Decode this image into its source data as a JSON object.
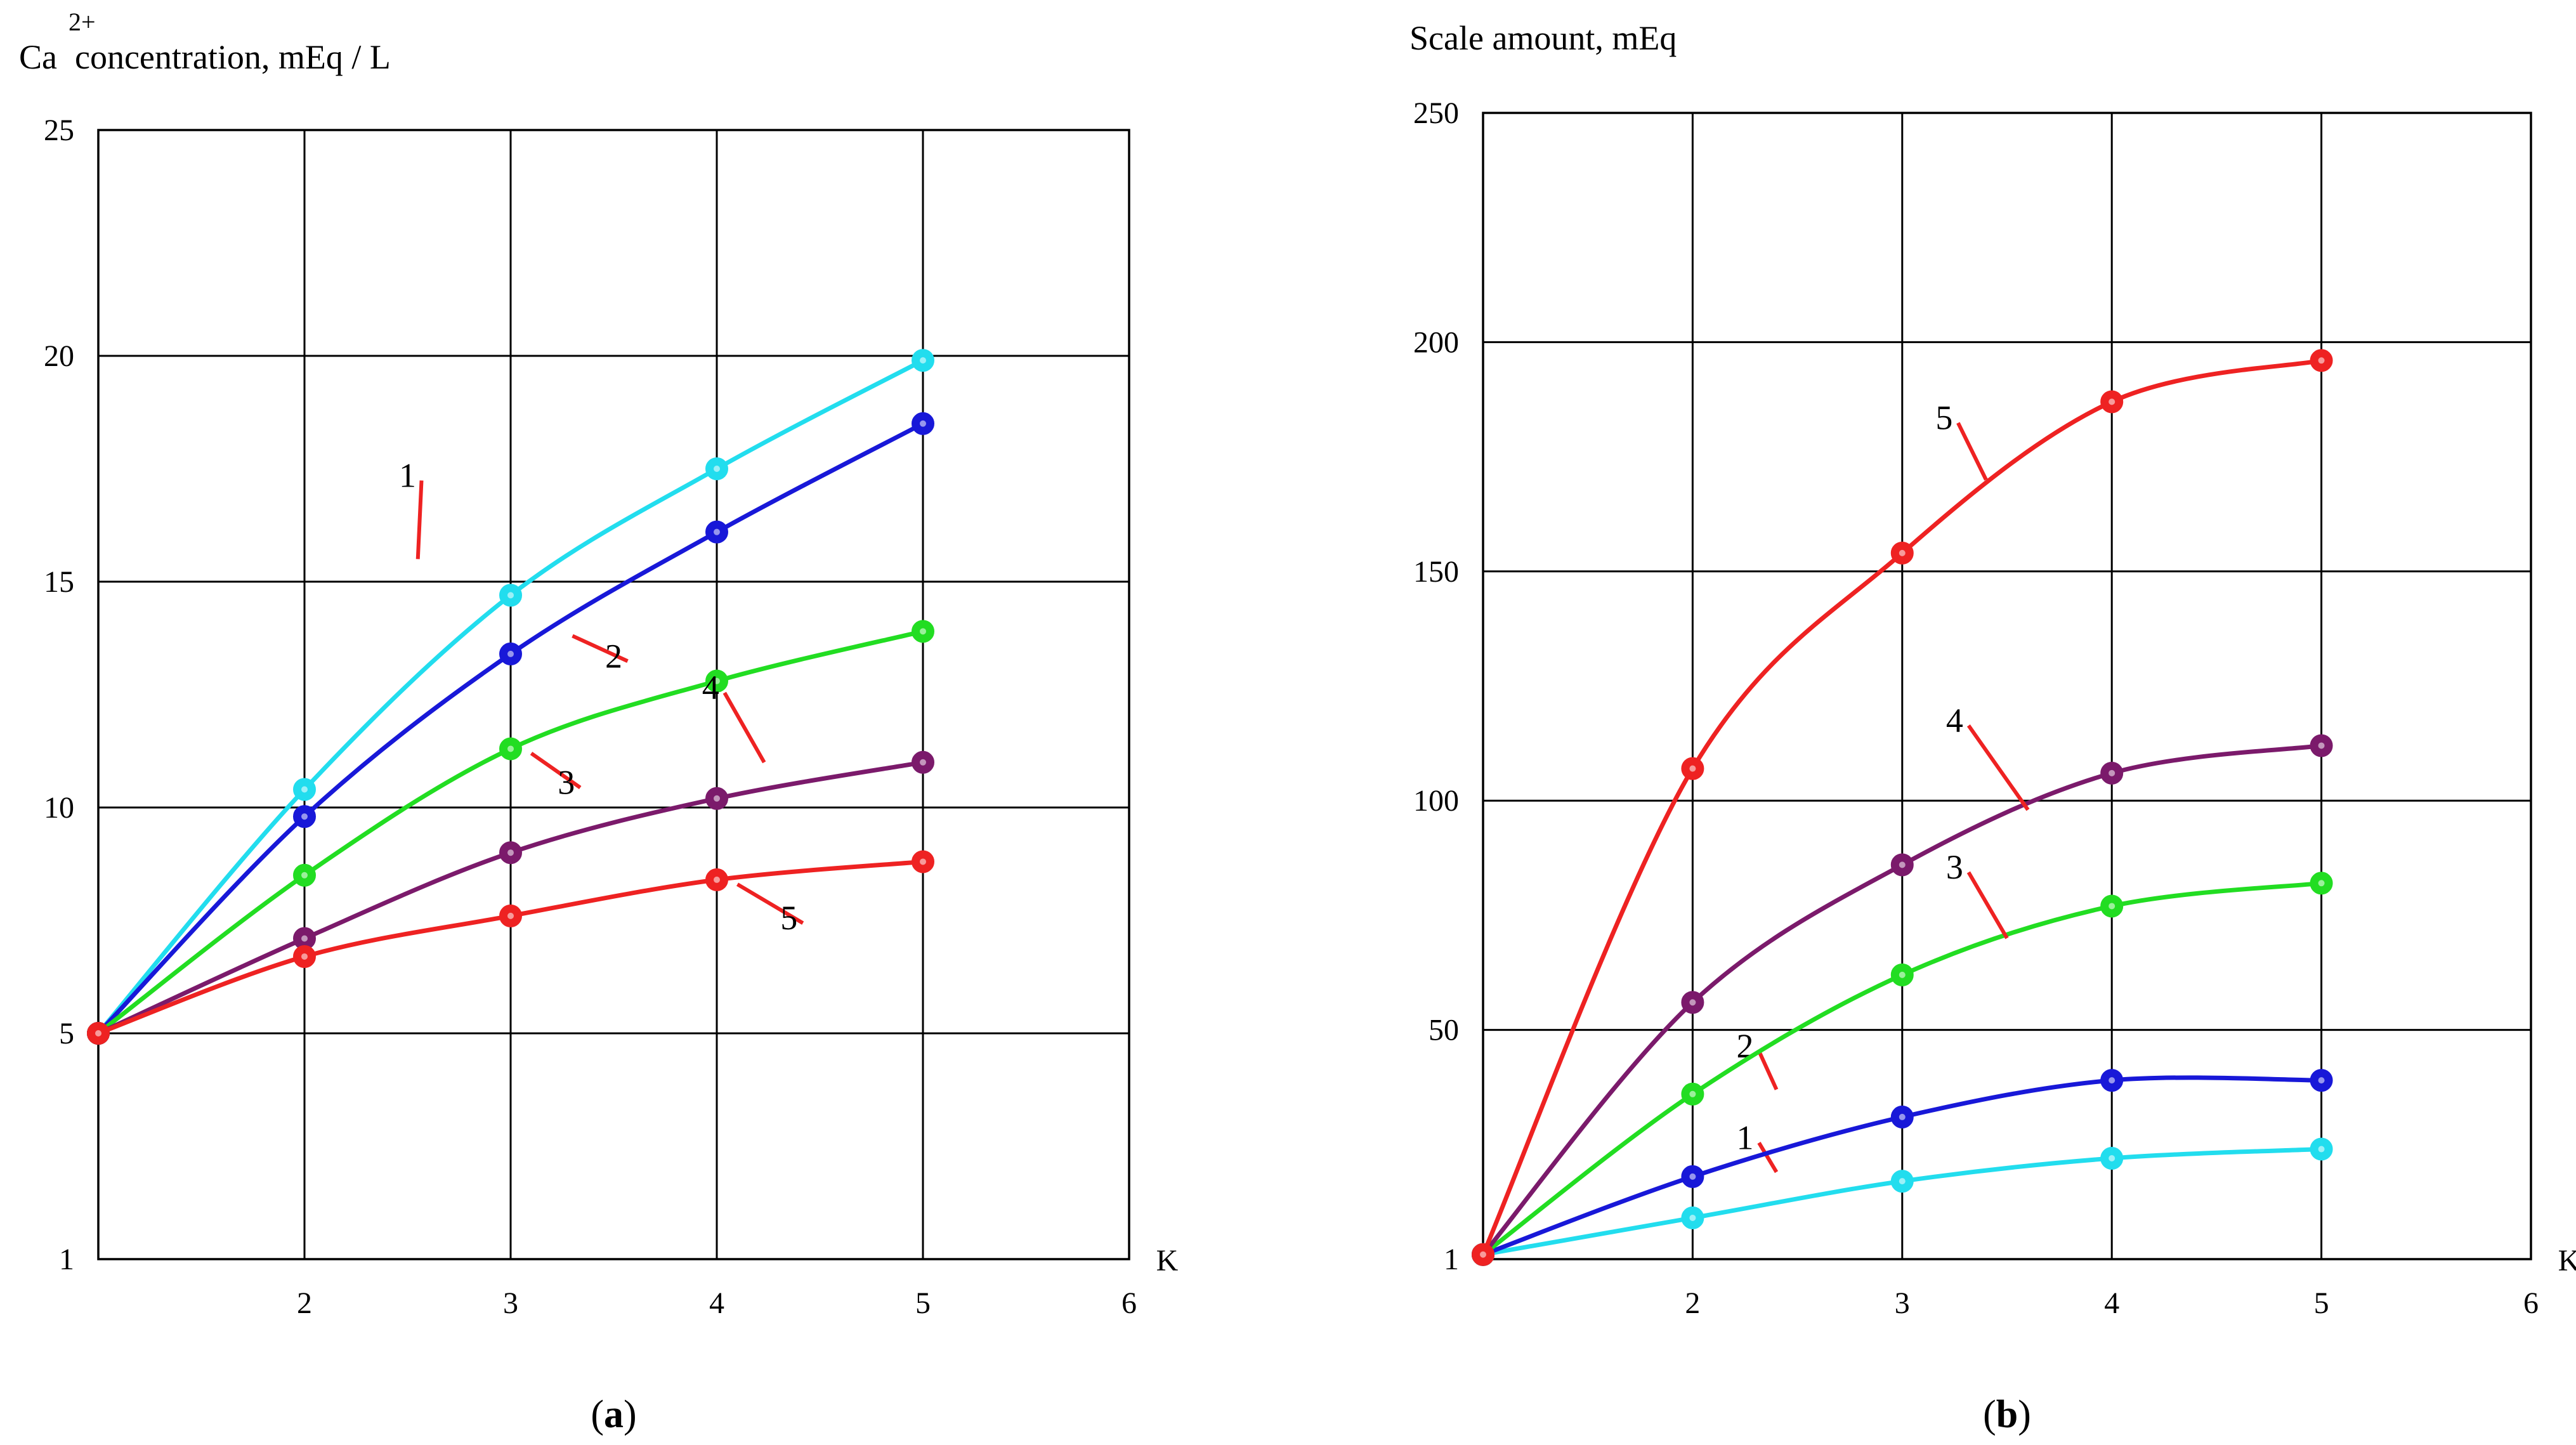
{
  "chart_data": [
    {
      "type": "line",
      "panel": "(a)",
      "panel_label_open": "(",
      "panel_label_letter": "a",
      "panel_label_close": ")",
      "ylabel_base": "Ca",
      "ylabel_sup": "2+",
      "ylabel_rest": " concentration, mEq / L",
      "xlabel": "K",
      "xlim": [
        1,
        6
      ],
      "ylim": [
        0,
        25
      ],
      "x_ticks": [
        "2",
        "3",
        "4",
        "5",
        "6"
      ],
      "y_ticks": [
        {
          "value": 0,
          "label": "1"
        },
        {
          "value": 5,
          "label": "5"
        },
        {
          "value": 10,
          "label": "10"
        },
        {
          "value": 15,
          "label": "15"
        },
        {
          "value": 20,
          "label": "20"
        },
        {
          "value": 25,
          "label": "25"
        }
      ],
      "grid": true,
      "series": [
        {
          "name": "1",
          "color": "#22ddee",
          "x": [
            1,
            2,
            3,
            4,
            5
          ],
          "y": [
            5,
            10.4,
            14.7,
            17.5,
            19.9
          ],
          "label_at": [
            2.5,
            17.1
          ],
          "leader_to": [
            2.55,
            15.5
          ]
        },
        {
          "name": "2",
          "color": "#1818d8",
          "x": [
            1,
            2,
            3,
            4,
            5
          ],
          "y": [
            5,
            9.8,
            13.4,
            16.1,
            18.5
          ],
          "label_at": [
            3.5,
            13.1
          ],
          "leader_to": [
            3.3,
            13.8
          ]
        },
        {
          "name": "3",
          "color": "#22dd22",
          "x": [
            1,
            2,
            3,
            4,
            5
          ],
          "y": [
            5,
            8.5,
            11.3,
            12.8,
            13.9
          ],
          "label_at": [
            3.27,
            10.3
          ],
          "leader_to": [
            3.1,
            11.2
          ]
        },
        {
          "name": "4",
          "color": "#7b1a6b",
          "x": [
            1,
            2,
            3,
            4,
            5
          ],
          "y": [
            5,
            7.1,
            9.0,
            10.2,
            11.0
          ],
          "label_at": [
            3.97,
            12.4
          ],
          "leader_to": [
            4.23,
            11.0
          ]
        },
        {
          "name": "5",
          "color": "#ee2222",
          "x": [
            1,
            2,
            3,
            4,
            5
          ],
          "y": [
            5,
            6.7,
            7.6,
            8.4,
            8.8
          ],
          "label_at": [
            4.35,
            7.3
          ],
          "leader_to": [
            4.1,
            8.3
          ]
        }
      ]
    },
    {
      "type": "line",
      "panel": "(b)",
      "panel_label_open": "(",
      "panel_label_letter": "b",
      "panel_label_close": ")",
      "ylabel": "Scale amount, mEq",
      "xlabel": "K",
      "xlim": [
        1,
        6
      ],
      "ylim": [
        0,
        250
      ],
      "x_ticks": [
        "2",
        "3",
        "4",
        "5",
        "6"
      ],
      "y_ticks": [
        {
          "value": 0,
          "label": "1"
        },
        {
          "value": 50,
          "label": "50"
        },
        {
          "value": 100,
          "label": "100"
        },
        {
          "value": 150,
          "label": "150"
        },
        {
          "value": 200,
          "label": "200"
        },
        {
          "value": 250,
          "label": "250"
        }
      ],
      "grid": true,
      "series": [
        {
          "name": "1",
          "color": "#22ddee",
          "x": [
            1,
            2,
            3,
            4,
            5
          ],
          "y": [
            1,
            9,
            17,
            22,
            24
          ],
          "label_at": [
            2.25,
            24
          ],
          "leader_to": [
            2.4,
            19
          ]
        },
        {
          "name": "2",
          "color": "#1818d8",
          "x": [
            1,
            2,
            3,
            4,
            5
          ],
          "y": [
            1,
            18,
            31,
            39,
            39
          ],
          "label_at": [
            2.25,
            44
          ],
          "leader_to": [
            2.4,
            37
          ]
        },
        {
          "name": "3",
          "color": "#22dd22",
          "x": [
            1,
            2,
            3,
            4,
            5
          ],
          "y": [
            1,
            36,
            62,
            77,
            82
          ],
          "label_at": [
            3.25,
            83
          ],
          "leader_to": [
            3.5,
            70
          ]
        },
        {
          "name": "4",
          "color": "#7b1a6b",
          "x": [
            1,
            2,
            3,
            4,
            5
          ],
          "y": [
            1,
            56,
            86,
            106,
            112
          ],
          "label_at": [
            3.25,
            115
          ],
          "leader_to": [
            3.6,
            98
          ]
        },
        {
          "name": "5",
          "color": "#ee2222",
          "x": [
            1,
            2,
            3,
            4,
            5
          ],
          "y": [
            1,
            107,
            154,
            187,
            196
          ],
          "label_at": [
            3.2,
            181
          ],
          "leader_to": [
            3.4,
            170
          ]
        }
      ]
    }
  ]
}
